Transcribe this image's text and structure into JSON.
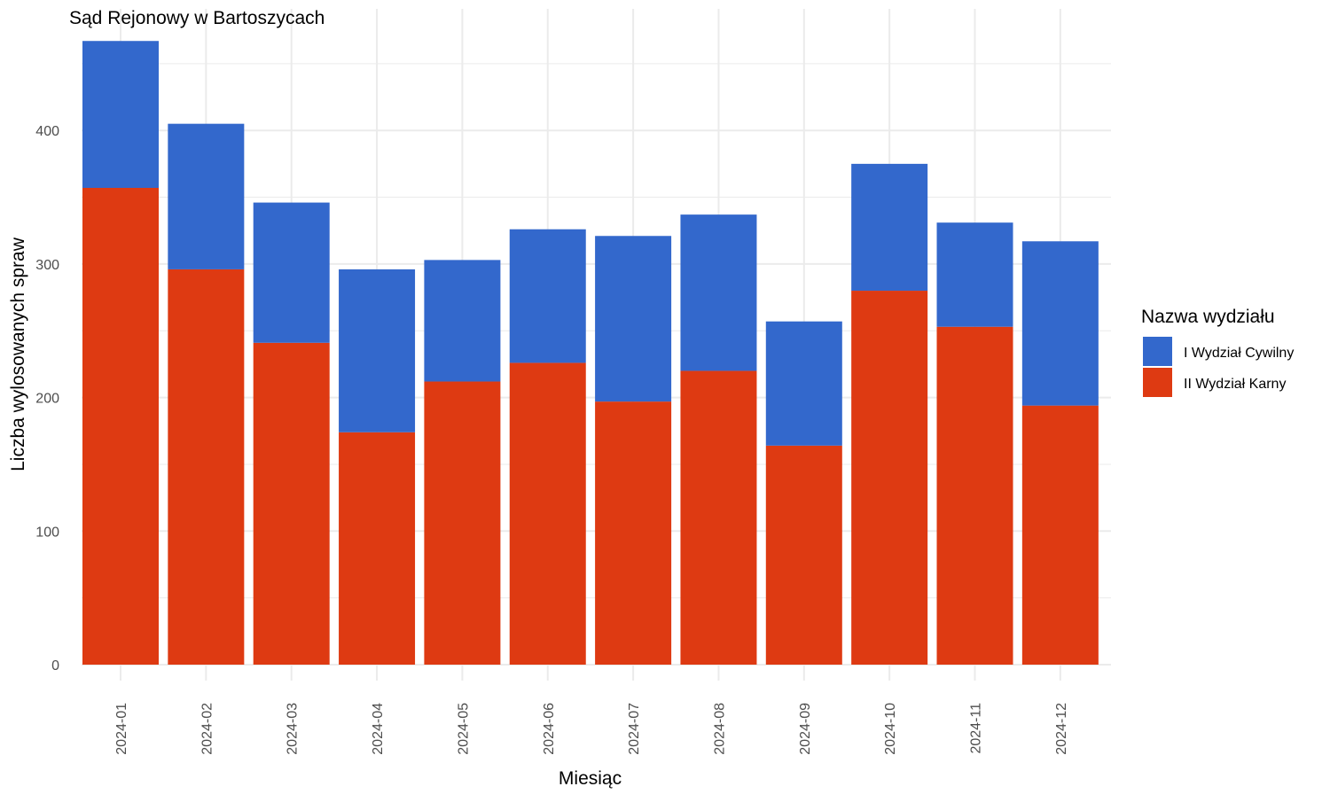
{
  "chart_data": {
    "type": "bar",
    "stacked": true,
    "title": "Sąd Rejonowy w Bartoszycach",
    "xlabel": "Miesiąc",
    "ylabel": "Liczba wylosowanych spraw",
    "categories": [
      "2024-01",
      "2024-02",
      "2024-03",
      "2024-04",
      "2024-05",
      "2024-06",
      "2024-07",
      "2024-08",
      "2024-09",
      "2024-10",
      "2024-11",
      "2024-12"
    ],
    "series": [
      {
        "name": "II Wydział Karny",
        "color": "#de3a12",
        "values": [
          357,
          296,
          241,
          174,
          212,
          226,
          197,
          220,
          164,
          280,
          253,
          194
        ]
      },
      {
        "name": "I Wydział Cywilny",
        "color": "#3368cc",
        "values": [
          110,
          109,
          105,
          122,
          91,
          100,
          124,
          117,
          93,
          95,
          78,
          123
        ]
      }
    ],
    "ylim": [
      0,
      475
    ],
    "yticks": [
      0,
      100,
      200,
      300,
      400
    ],
    "grid": true,
    "legend": {
      "title": "Nazwa wydziału",
      "placement": "right",
      "items": [
        {
          "label": "I Wydział Cywilny",
          "color": "#3368cc"
        },
        {
          "label": "II Wydział Karny",
          "color": "#de3a12"
        }
      ]
    }
  }
}
